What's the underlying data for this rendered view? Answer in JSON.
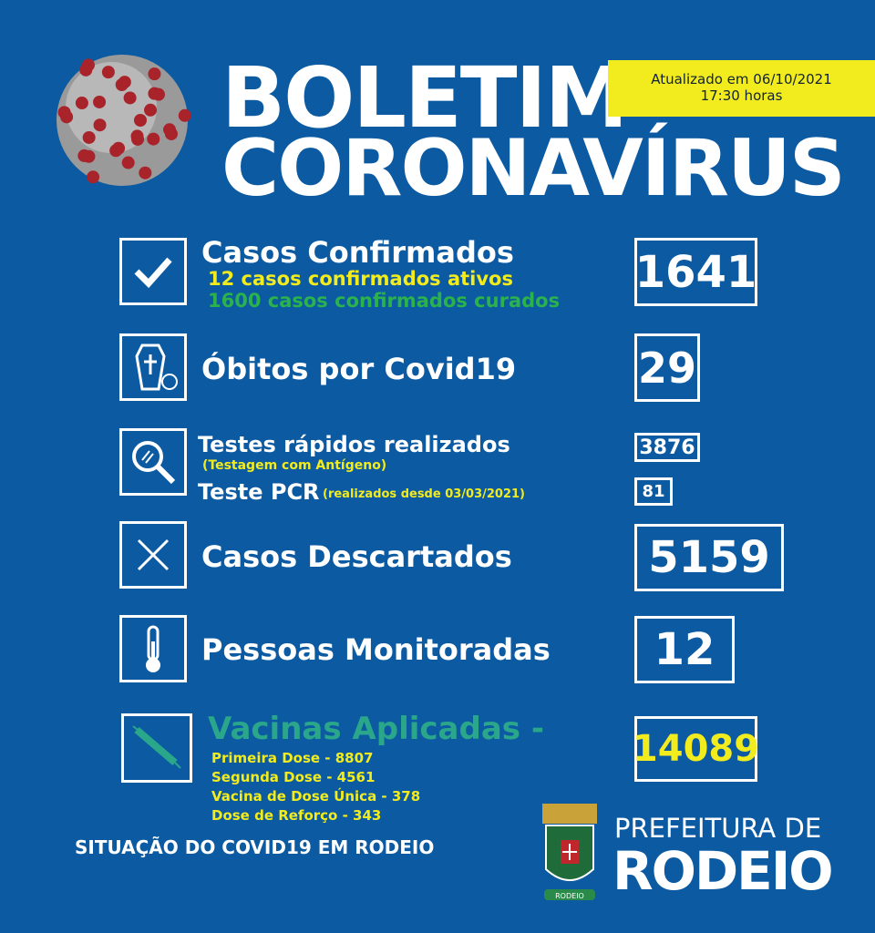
{
  "header": {
    "title_line1": "BOLETIM",
    "title_line2": "CORONAVÍRUS",
    "updated": "Atualizado em 06/10/2021",
    "time": "17:30 horas"
  },
  "colors": {
    "background": "#0b5aa2",
    "yellow": "#f2ec1e",
    "green": "#2bb24c",
    "teal": "#2aa68a",
    "virus_red": "#a8232a"
  },
  "items": {
    "confirmados": {
      "icon": "checkmark-icon",
      "label": "Casos Confirmados",
      "ativos": "12 casos confirmados ativos",
      "curados": "1600 casos confirmados curados",
      "value": "1641"
    },
    "obitos": {
      "icon": "coffin-icon",
      "label": "Óbitos por Covid19",
      "value": "29"
    },
    "testes": {
      "icon": "magnifier-icon",
      "label": "Testes rápidos realizados",
      "sub": "(Testagem com Antígeno)",
      "value": "3876",
      "pcr_label": "Teste PCR",
      "pcr_sub": "(realizados desde 03/03/2021)",
      "pcr_value": "81"
    },
    "descartados": {
      "icon": "x-icon",
      "label": "Casos Descartados",
      "value": "5159"
    },
    "monitoradas": {
      "icon": "thermometer-icon",
      "label": "Pessoas Monitoradas",
      "value": "12"
    },
    "vacinas": {
      "icon": "syringe-icon",
      "label": "Vacinas Aplicadas -",
      "value": "14089",
      "doses": [
        "Primeira Dose - 8807",
        "Segunda Dose - 4561",
        "Vacina de Dose Única - 378",
        "Dose de Reforço - 343"
      ]
    }
  },
  "footer": {
    "situacao": "SITUAÇÃO DO COVID19 EM RODEIO",
    "prefeitura": "PREFEITURA DE",
    "city": "RODEIO",
    "crest_text": "RODEIO"
  }
}
